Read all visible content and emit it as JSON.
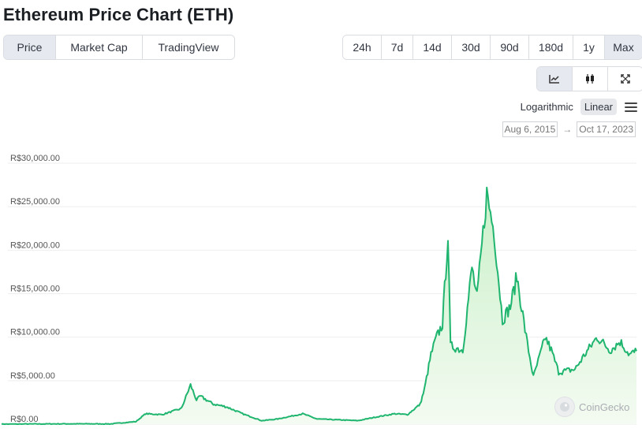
{
  "page": {
    "title": "Ethereum Price Chart (ETH)"
  },
  "chart_tabs": [
    "Price",
    "Market Cap",
    "TradingView"
  ],
  "active_tab": "Price",
  "ranges": [
    "24h",
    "7d",
    "14d",
    "30d",
    "90d",
    "180d",
    "1y",
    "Max"
  ],
  "active_range": "Max",
  "tools": [
    {
      "name": "line-chart-icon",
      "active": true
    },
    {
      "name": "candlestick-icon",
      "active": false
    },
    {
      "name": "fullscreen-icon",
      "active": false
    }
  ],
  "scale": {
    "logarithmic": "Logarithmic",
    "linear": "Linear",
    "active": "Linear"
  },
  "date_range": {
    "from": "Aug 6, 2015",
    "to": "Oct 17, 2023",
    "arrow": "→"
  },
  "logo": {
    "text": "CoinGecko"
  },
  "colors": {
    "line": "#1fb56f",
    "fill_top": "#c9f0c8",
    "fill_bottom": "#f4fbf2",
    "grid": "#eeeeee"
  },
  "chart_data": {
    "type": "area",
    "title": "",
    "xlabel": "",
    "ylabel": "",
    "currency_prefix": "R$",
    "ylim": [
      0,
      30000
    ],
    "yticks": [
      "R$30,000.00",
      "R$25,000.00",
      "R$20,000.00",
      "R$15,000.00",
      "R$10,000.00",
      "R$5,000.00",
      "R$0.00"
    ],
    "ytick_values": [
      30000,
      25000,
      20000,
      15000,
      10000,
      5000,
      0
    ],
    "x_range": [
      "2015-08-06",
      "2023-10-17"
    ],
    "series": [
      {
        "x": [
          "2015-08-06",
          "2016-06-01",
          "2017-01-01",
          "2017-05-01",
          "2017-06-15",
          "2017-09-01",
          "2017-12-01",
          "2018-01-13",
          "2018-02-10",
          "2018-03-01",
          "2018-05-01",
          "2018-07-01",
          "2018-09-15",
          "2018-12-15",
          "2019-03-01",
          "2019-06-26",
          "2019-09-01",
          "2019-12-15",
          "2020-03-13",
          "2020-06-01",
          "2020-09-01",
          "2020-11-01",
          "2020-12-31",
          "2021-01-20",
          "2021-02-20",
          "2021-03-15",
          "2021-04-15",
          "2021-05-11",
          "2021-05-23",
          "2021-07-20",
          "2021-09-01",
          "2021-09-25",
          "2021-11-10",
          "2021-12-15",
          "2022-01-23",
          "2022-03-01",
          "2022-04-01",
          "2022-05-15",
          "2022-06-18",
          "2022-08-13",
          "2022-09-10",
          "2022-10-15",
          "2022-12-31",
          "2023-02-15",
          "2023-04-15",
          "2023-06-15",
          "2023-08-01",
          "2023-09-15",
          "2023-10-17"
        ],
        "values": [
          5,
          40,
          30,
          300,
          1200,
          1100,
          1800,
          4500,
          2800,
          3200,
          2300,
          2000,
          1200,
          400,
          600,
          1200,
          600,
          500,
          400,
          800,
          1200,
          1100,
          2300,
          4000,
          8000,
          9800,
          11500,
          21700,
          9000,
          8500,
          18000,
          14500,
          26500,
          22000,
          12000,
          13500,
          17000,
          10000,
          5400,
          10000,
          8500,
          6000,
          6300,
          8000,
          10000,
          8500,
          9500,
          8000,
          8400
        ]
      }
    ]
  }
}
